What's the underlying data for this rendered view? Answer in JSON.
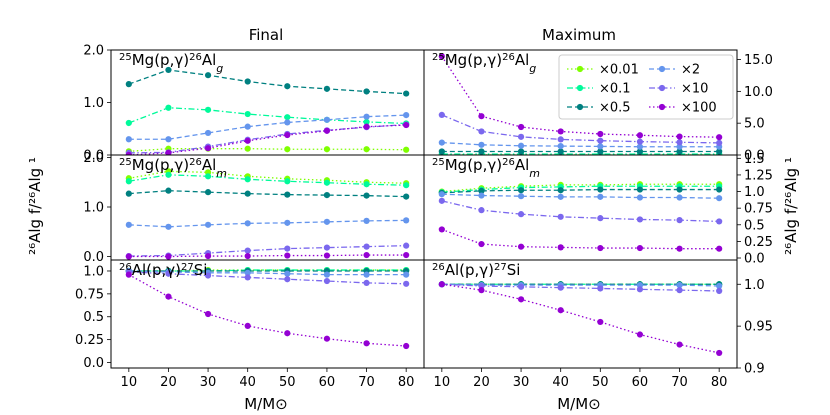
{
  "chart_data": {
    "type": "line",
    "title_left": "Final",
    "title_right": "Maximum",
    "xlabel": "M/M⊙",
    "ylabel_left": "²⁶Alg f/²⁶Alg ¹",
    "ylabel_right": "²⁶Alg f/²⁶Alg ¹",
    "x": [
      10,
      20,
      30,
      40,
      50,
      60,
      70,
      80
    ],
    "xticks": [
      "10",
      "20",
      "30",
      "40",
      "50",
      "60",
      "70",
      "80"
    ],
    "legend": [
      {
        "name": "×0.01",
        "color": "#7fff00",
        "dash": "dotted",
        "marker": "circle"
      },
      {
        "name": "×0.1",
        "color": "#00fa9a",
        "dash": "dashdot",
        "marker": "circle"
      },
      {
        "name": "×0.5",
        "color": "#008080",
        "dash": "dashed",
        "marker": "circle"
      },
      {
        "name": "×2",
        "color": "#6495ed",
        "dash": "dashed",
        "marker": "circle"
      },
      {
        "name": "×10",
        "color": "#7b68ee",
        "dash": "dashdot",
        "marker": "circle"
      },
      {
        "name": "×100",
        "color": "#9400d3",
        "dash": "dotted",
        "marker": "circle"
      }
    ],
    "panels": [
      {
        "id": "final-mg25-g",
        "label": "²⁵Mg(p,γ)²⁶Alg",
        "ylim": [
          0,
          2.0
        ],
        "yticks": [
          0.0,
          1.0,
          2.0
        ],
        "ytick_labels": [
          "0.0",
          "1.0",
          "2.0"
        ],
        "series": [
          {
            "name": "×0.01",
            "values": [
              0.07,
              0.12,
              0.12,
              0.12,
              0.11,
              0.11,
              0.11,
              0.1
            ]
          },
          {
            "name": "×0.1",
            "values": [
              0.61,
              0.9,
              0.86,
              0.78,
              0.72,
              0.67,
              0.63,
              0.6
            ]
          },
          {
            "name": "×0.5",
            "values": [
              1.35,
              1.62,
              1.52,
              1.4,
              1.31,
              1.26,
              1.21,
              1.17
            ]
          },
          {
            "name": "×2",
            "values": [
              0.3,
              0.3,
              0.42,
              0.54,
              0.62,
              0.67,
              0.73,
              0.76
            ]
          },
          {
            "name": "×10",
            "values": [
              0.04,
              0.05,
              0.16,
              0.29,
              0.4,
              0.47,
              0.53,
              0.58
            ]
          },
          {
            "name": "×100",
            "values": [
              0.0,
              0.04,
              0.13,
              0.27,
              0.38,
              0.46,
              0.54,
              0.57
            ]
          }
        ]
      },
      {
        "id": "max-mg25-g",
        "label": "²⁵Mg(p,γ)²⁶Alg",
        "ylim": [
          0,
          16.5
        ],
        "yticks": [
          0.0,
          5.0,
          10.0,
          15.0
        ],
        "ytick_labels": [
          "0.0",
          "5.0",
          "10.0",
          "15.0"
        ],
        "series": [
          {
            "name": "×0.01",
            "values": [
              0.02,
              0.02,
              0.02,
              0.02,
              0.02,
              0.02,
              0.02,
              0.02
            ]
          },
          {
            "name": "×0.1",
            "values": [
              0.15,
              0.15,
              0.15,
              0.15,
              0.15,
              0.15,
              0.15,
              0.15
            ]
          },
          {
            "name": "×0.5",
            "values": [
              0.55,
              0.55,
              0.55,
              0.55,
              0.55,
              0.55,
              0.55,
              0.55
            ]
          },
          {
            "name": "×2",
            "values": [
              1.95,
              1.6,
              1.45,
              1.4,
              1.35,
              1.3,
              1.3,
              1.3
            ]
          },
          {
            "name": "×10",
            "values": [
              6.3,
              3.7,
              2.85,
              2.45,
              2.25,
              2.1,
              2.0,
              1.9
            ]
          },
          {
            "name": "×100",
            "values": [
              15.5,
              6.1,
              4.4,
              3.7,
              3.3,
              3.1,
              2.9,
              2.8
            ]
          }
        ]
      },
      {
        "id": "final-mg25-m",
        "label": "²⁵Mg(p,γ)²⁶Alm",
        "ylim": [
          -0.07,
          2.05
        ],
        "yticks": [
          0.0,
          1.0,
          2.0
        ],
        "ytick_labels": [
          "0.0",
          "1.0",
          "2.0"
        ],
        "series": [
          {
            "name": "×0.01",
            "values": [
              1.58,
              1.72,
              1.7,
              1.62,
              1.57,
              1.54,
              1.5,
              1.48
            ]
          },
          {
            "name": "×0.1",
            "values": [
              1.52,
              1.65,
              1.62,
              1.56,
              1.52,
              1.49,
              1.46,
              1.44
            ]
          },
          {
            "name": "×0.5",
            "values": [
              1.27,
              1.33,
              1.3,
              1.27,
              1.25,
              1.24,
              1.23,
              1.21
            ]
          },
          {
            "name": "×2",
            "values": [
              0.64,
              0.6,
              0.64,
              0.67,
              0.68,
              0.7,
              0.72,
              0.73
            ]
          },
          {
            "name": "×10",
            "values": [
              0.01,
              0.02,
              0.07,
              0.12,
              0.16,
              0.18,
              0.2,
              0.22
            ]
          },
          {
            "name": "×100",
            "values": [
              0.0,
              0.0,
              0.01,
              0.01,
              0.02,
              0.02,
              0.03,
              0.03
            ]
          }
        ]
      },
      {
        "id": "max-mg25-m",
        "label": "²⁵Mg(p,γ)²⁶Alm",
        "ylim": [
          -0.03,
          1.55
        ],
        "yticks": [
          0.0,
          0.25,
          0.5,
          0.75,
          1.0,
          1.25,
          1.5
        ],
        "ytick_labels": [
          "0.0",
          "0.25",
          "0.5",
          "0.75",
          "1.0",
          "1.25",
          "1.5"
        ],
        "series": [
          {
            "name": "×0.01",
            "values": [
              1.0,
              1.05,
              1.08,
              1.1,
              1.1,
              1.11,
              1.11,
              1.11
            ]
          },
          {
            "name": "×0.1",
            "values": [
              0.99,
              1.03,
              1.06,
              1.07,
              1.08,
              1.08,
              1.08,
              1.08
            ]
          },
          {
            "name": "×0.5",
            "values": [
              0.98,
              1.01,
              1.02,
              1.02,
              1.03,
              1.03,
              1.03,
              1.03
            ]
          },
          {
            "name": "×2",
            "values": [
              0.96,
              0.94,
              0.93,
              0.92,
              0.92,
              0.91,
              0.91,
              0.9
            ]
          },
          {
            "name": "×10",
            "values": [
              0.86,
              0.72,
              0.66,
              0.62,
              0.6,
              0.58,
              0.57,
              0.55
            ]
          },
          {
            "name": "×100",
            "values": [
              0.43,
              0.21,
              0.17,
              0.16,
              0.15,
              0.15,
              0.14,
              0.14
            ]
          }
        ]
      },
      {
        "id": "final-al26-si",
        "label": "²⁶Al(p,γ)²⁷Si",
        "ylim": [
          -0.06,
          1.12
        ],
        "yticks": [
          0.0,
          0.25,
          0.5,
          0.75,
          1.0
        ],
        "ytick_labels": [
          "0.0",
          "0.25",
          "0.5",
          "0.75",
          "1.0"
        ],
        "series": [
          {
            "name": "×0.01",
            "values": [
              1.0,
              1.0,
              1.01,
              1.01,
              1.01,
              1.01,
              1.01,
              1.01
            ]
          },
          {
            "name": "×0.1",
            "values": [
              1.0,
              1.0,
              1.0,
              1.01,
              1.01,
              1.01,
              1.01,
              1.01
            ]
          },
          {
            "name": "×0.5",
            "values": [
              1.0,
              1.0,
              1.0,
              1.0,
              1.0,
              1.0,
              1.0,
              1.0
            ]
          },
          {
            "name": "×2",
            "values": [
              1.0,
              0.99,
              0.98,
              0.98,
              0.97,
              0.96,
              0.96,
              0.96
            ]
          },
          {
            "name": "×10",
            "values": [
              0.99,
              0.97,
              0.95,
              0.93,
              0.91,
              0.89,
              0.87,
              0.86
            ]
          },
          {
            "name": "×100",
            "values": [
              0.96,
              0.72,
              0.53,
              0.4,
              0.32,
              0.26,
              0.21,
              0.18
            ]
          }
        ]
      },
      {
        "id": "max-al26-si",
        "label": "²⁶Al(p,γ)²⁷Si",
        "ylim": [
          0.9,
          1.029
        ],
        "yticks": [
          0.9,
          0.95,
          1.0
        ],
        "ytick_labels": [
          "0.9",
          "0.95",
          "1.0"
        ],
        "series": [
          {
            "name": "×0.01",
            "values": [
              1.0,
              1.0,
              1.0,
              1.0,
              1.0,
              1.0,
              1.0,
              1.0
            ]
          },
          {
            "name": "×0.1",
            "values": [
              1.0,
              1.0,
              1.0,
              1.0,
              1.0,
              1.0,
              1.0,
              1.0
            ]
          },
          {
            "name": "×0.5",
            "values": [
              1.0,
              1.0,
              1.0,
              1.0,
              1.0,
              1.0,
              1.0,
              1.0
            ]
          },
          {
            "name": "×2",
            "values": [
              1.0,
              0.999,
              0.999,
              0.999,
              0.999,
              0.999,
              0.999,
              0.998
            ]
          },
          {
            "name": "×10",
            "values": [
              1.0,
              0.998,
              0.997,
              0.996,
              0.995,
              0.994,
              0.993,
              0.992
            ]
          },
          {
            "name": "×100",
            "values": [
              1.0,
              0.993,
              0.982,
              0.969,
              0.955,
              0.94,
              0.928,
              0.918
            ]
          }
        ]
      }
    ]
  }
}
